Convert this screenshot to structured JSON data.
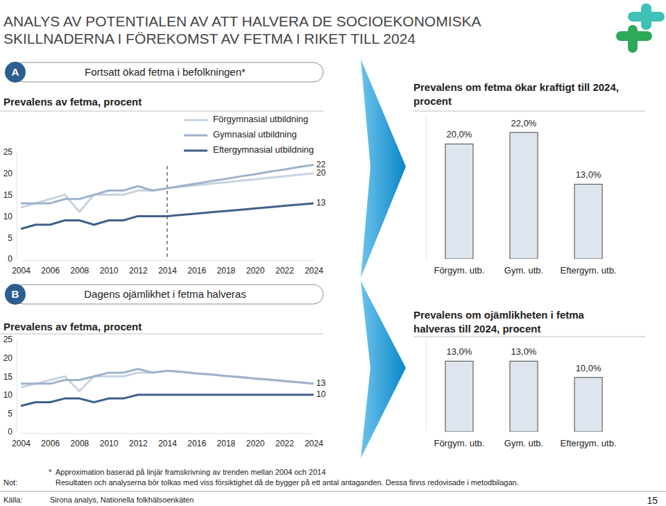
{
  "page": {
    "title": [
      "ANALYS AV POTENTIALEN AV ATT HALVERA DE SOCIOEKONOMISKA",
      "SKILLNADERNA I FÖREKOMST AV FETMA I RIKET TILL 2024"
    ],
    "sections": [
      {
        "letter": "A",
        "heading": "Fortsatt ökad fetma i befolkningen*"
      },
      {
        "letter": "B",
        "heading": "Dagens ojämlikhet i fetma halveras"
      }
    ],
    "footnote": {
      "marker": "*",
      "text": "Approximation baserad på linjär framskrivning av trenden mellan 2004 och 2014"
    },
    "note": {
      "label": "Not:",
      "text": "Resultaten och analyserna bör tolkas med viss försiktighet då de bygger på ett antal antaganden. Dessa finns redovisade i metodbilagan."
    },
    "source": {
      "label": "Källa:",
      "text": "Sirona analys, Nationella folkhälsoenkäten"
    },
    "page_number": 15
  },
  "chart_data": [
    {
      "type": "line",
      "title": "Prevalens av fetma, procent",
      "x": [
        2004,
        2005,
        2006,
        2007,
        2008,
        2009,
        2010,
        2011,
        2012,
        2013,
        2014,
        2015,
        2016,
        2017,
        2018,
        2019,
        2020,
        2021,
        2022,
        2023,
        2024
      ],
      "series": [
        {
          "name": "Förgymnasial utbildning",
          "color": "#c6d3e3",
          "values": [
            12,
            13,
            14,
            15,
            11,
            15,
            15,
            15,
            16,
            16,
            16.5,
            16.9,
            17.2,
            17.6,
            17.9,
            18.3,
            18.6,
            19,
            19.3,
            19.7,
            20
          ]
        },
        {
          "name": "Gymnasial utbildning",
          "color": "#9fb2ca",
          "values": [
            13,
            13,
            13,
            14,
            14,
            15,
            16,
            16,
            17,
            16,
            16.5,
            17.1,
            17.6,
            18.2,
            18.7,
            19.3,
            19.8,
            20.4,
            20.9,
            21.5,
            22
          ]
        },
        {
          "name": "Eftergymnasial utbildning",
          "color": "#3f608a",
          "values": [
            7,
            8,
            8,
            9,
            9,
            8,
            9,
            9,
            10,
            10,
            10,
            10.3,
            10.6,
            10.9,
            11.2,
            11.5,
            11.8,
            12.1,
            12.4,
            12.7,
            13
          ]
        }
      ],
      "xlim": [
        2004,
        2024
      ],
      "xticks": [
        2004,
        2006,
        2008,
        2010,
        2012,
        2014,
        2016,
        2018,
        2020,
        2022,
        2024
      ],
      "ylim": [
        0,
        25
      ],
      "yticks": [
        0,
        5,
        10,
        15,
        20,
        25
      ],
      "legend": "top-right",
      "projection_start": 2014,
      "annotations": [
        {
          "x": 2024,
          "y": 22,
          "text": "22"
        },
        {
          "x": 2024,
          "y": 20,
          "text": "20"
        },
        {
          "x": 2024,
          "y": 13,
          "text": "13"
        }
      ]
    },
    {
      "type": "bar",
      "title": "Prevalens om fetma ökar kraftigt till 2024, procent",
      "categories": [
        "Förgym. utb.",
        "Gym. utb.",
        "Eftergym. utb."
      ],
      "values": [
        20,
        22,
        13
      ],
      "value_labels": [
        "20,0%",
        "22,0%",
        "13,0%"
      ],
      "color": "#dfe5ee",
      "ylim": [
        0,
        25
      ],
      "yticks": [],
      "data_labels": true,
      "tick_labels": "x"
    },
    {
      "type": "line",
      "title": "Prevalens av fetma, procent",
      "x": [
        2004,
        2005,
        2006,
        2007,
        2008,
        2009,
        2010,
        2011,
        2012,
        2013,
        2014,
        2015,
        2016,
        2017,
        2018,
        2019,
        2020,
        2021,
        2022,
        2023,
        2024
      ],
      "series": [
        {
          "name": "Förgymnasial utbildning",
          "color": "#c6d3e3",
          "values": [
            12,
            13,
            14,
            15,
            11,
            15,
            15,
            15,
            16,
            16,
            16.5,
            16.2,
            15.8,
            15.5,
            15.1,
            14.8,
            14.4,
            14.1,
            13.7,
            13.4,
            13
          ]
        },
        {
          "name": "Gymnasial utbildning",
          "color": "#9fb2ca",
          "values": [
            13,
            13,
            13,
            14,
            14,
            15,
            16,
            16,
            17,
            16,
            16.5,
            16.2,
            15.8,
            15.5,
            15.1,
            14.8,
            14.4,
            14.1,
            13.7,
            13.4,
            13
          ]
        },
        {
          "name": "Eftergymnasial utbildning",
          "color": "#3f608a",
          "values": [
            7,
            8,
            8,
            9,
            9,
            8,
            9,
            9,
            10,
            10,
            10,
            10,
            10,
            10,
            10,
            10,
            10,
            10,
            10,
            10,
            10
          ]
        }
      ],
      "xlim": [
        2004,
        2024
      ],
      "xticks": [
        2004,
        2006,
        2008,
        2010,
        2012,
        2014,
        2016,
        2018,
        2020,
        2022,
        2024
      ],
      "ylim": [
        0,
        25
      ],
      "yticks": [
        0,
        5,
        10,
        15,
        20,
        25
      ],
      "annotations": [
        {
          "x": 2024,
          "y": 13,
          "text": "13"
        },
        {
          "x": 2024,
          "y": 10,
          "text": "10"
        }
      ]
    },
    {
      "type": "bar",
      "title": "Prevalens om ojämlikheten i fetma halveras till 2024, procent",
      "categories": [
        "Förgym. utb.",
        "Gym. utb.",
        "Eftergym. utb."
      ],
      "values": [
        13,
        13,
        10
      ],
      "value_labels": [
        "13,0%",
        "13,0%",
        "10,0%"
      ],
      "color": "#dfe5ee",
      "ylim": [
        0,
        17
      ],
      "yticks": [],
      "data_labels": true,
      "tick_labels": "x"
    }
  ]
}
